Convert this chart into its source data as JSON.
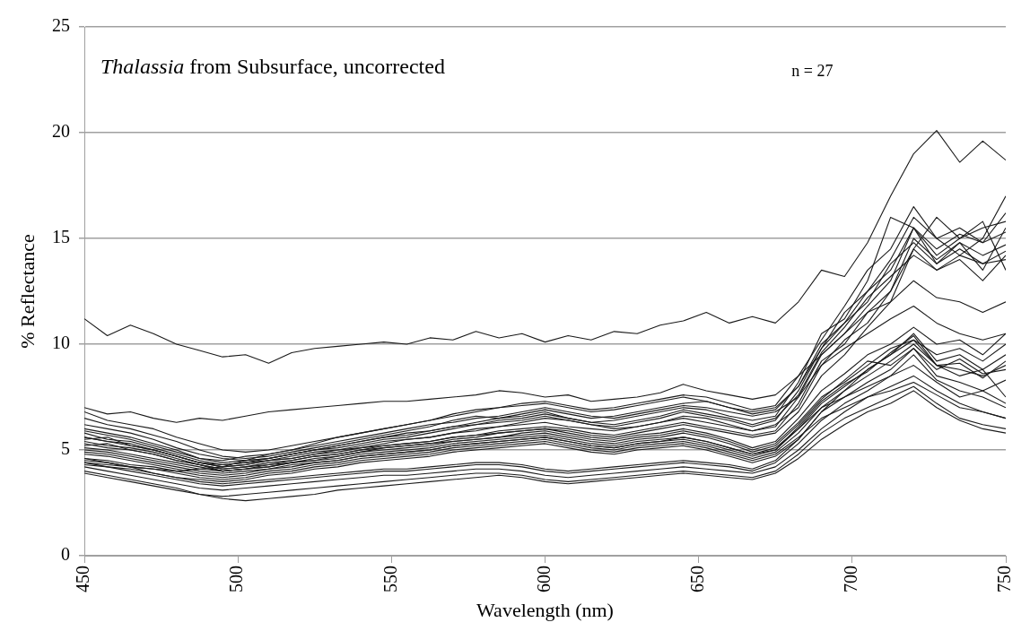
{
  "chart_data": {
    "type": "line",
    "title": "Thalassia from Subsurface, uncorrected",
    "xlabel": "Wavelength (nm)",
    "ylabel": "% Reflectance",
    "annotations": [
      "n = 27"
    ],
    "x": [
      450,
      457.5,
      465,
      472.5,
      480,
      487.5,
      495,
      502.5,
      510,
      517.5,
      525,
      532.5,
      540,
      547.5,
      555,
      562.5,
      570,
      577.5,
      585,
      592.5,
      600,
      607.5,
      615,
      622.5,
      630,
      637.5,
      645,
      652.5,
      660,
      667.5,
      675,
      682.5,
      690,
      697.5,
      705,
      712.5,
      720,
      727.5,
      735,
      742.5,
      750
    ],
    "xlim": [
      450,
      750
    ],
    "xticks": [
      450,
      500,
      550,
      600,
      650,
      700,
      750
    ],
    "ylim": [
      0,
      25
    ],
    "yticks": [
      0,
      5,
      10,
      15,
      20,
      25
    ],
    "grid": "y",
    "legend": false,
    "marker": "none",
    "line_style": "solid",
    "series": [
      {
        "color": "#1a1a1a",
        "values": [
          11.2,
          10.4,
          10.9,
          10.5,
          10.0,
          9.7,
          9.4,
          9.5,
          9.1,
          9.6,
          9.8,
          9.9,
          10.0,
          10.1,
          10.0,
          10.3,
          10.2,
          10.6,
          10.3,
          10.5,
          10.1,
          10.4,
          10.2,
          10.6,
          10.5,
          10.9,
          11.1,
          11.5,
          11.0,
          11.3,
          11.0,
          12.0,
          13.5,
          13.2,
          14.8,
          17.0,
          19.0,
          20.1,
          18.6,
          19.6,
          18.7
        ]
      },
      {
        "color": "#1a1a1a",
        "values": [
          7.0,
          6.7,
          6.8,
          6.5,
          6.3,
          6.5,
          6.4,
          6.6,
          6.8,
          6.9,
          7.0,
          7.1,
          7.2,
          7.3,
          7.3,
          7.4,
          7.5,
          7.6,
          7.8,
          7.7,
          7.5,
          7.6,
          7.3,
          7.4,
          7.5,
          7.7,
          8.1,
          7.8,
          7.6,
          7.4,
          7.6,
          8.5,
          9.5,
          10.5,
          11.5,
          12.5,
          14.5,
          16.0,
          15.0,
          15.5,
          15.8
        ]
      },
      {
        "color": "#1a1a1a",
        "values": [
          6.0,
          5.8,
          5.6,
          5.3,
          5.0,
          4.6,
          4.5,
          4.7,
          4.8,
          5.0,
          5.2,
          5.4,
          5.6,
          5.8,
          6.0,
          6.2,
          6.3,
          6.5,
          6.6,
          6.8,
          7.0,
          6.8,
          6.6,
          6.5,
          6.7,
          6.9,
          7.1,
          7.0,
          6.8,
          6.6,
          6.8,
          7.5,
          9.5,
          10.5,
          11.8,
          13.0,
          15.5,
          14.5,
          15.2,
          14.8,
          15.3
        ]
      },
      {
        "color": "#1a1a1a",
        "values": [
          5.5,
          5.6,
          5.2,
          5.0,
          4.7,
          4.4,
          4.2,
          4.3,
          4.5,
          4.6,
          4.8,
          5.0,
          5.1,
          5.3,
          5.5,
          5.6,
          5.8,
          6.0,
          6.1,
          6.3,
          6.5,
          6.4,
          6.2,
          6.0,
          6.1,
          6.3,
          6.6,
          6.5,
          6.2,
          5.9,
          6.2,
          7.0,
          9.0,
          10.2,
          11.0,
          12.5,
          15.0,
          14.0,
          14.8,
          14.2,
          14.7
        ]
      },
      {
        "color": "#1a1a1a",
        "values": [
          6.5,
          6.2,
          6.0,
          5.7,
          5.4,
          5.0,
          4.7,
          4.6,
          4.7,
          4.9,
          5.1,
          5.3,
          5.5,
          5.7,
          5.9,
          6.1,
          6.4,
          6.6,
          6.5,
          6.7,
          6.9,
          6.7,
          6.5,
          6.6,
          6.8,
          7.0,
          7.2,
          7.3,
          7.0,
          6.7,
          6.9,
          8.0,
          10.0,
          11.0,
          12.5,
          14.0,
          16.0,
          15.0,
          15.5,
          14.8,
          16.2
        ]
      },
      {
        "color": "#1a1a1a",
        "values": [
          5.2,
          5.3,
          5.0,
          4.8,
          4.5,
          4.3,
          4.0,
          4.1,
          4.2,
          4.4,
          4.5,
          4.7,
          4.9,
          5.1,
          5.2,
          5.3,
          5.5,
          5.6,
          5.8,
          5.9,
          6.0,
          5.9,
          5.7,
          5.6,
          5.8,
          6.0,
          6.2,
          6.0,
          5.8,
          5.6,
          5.8,
          6.8,
          8.5,
          9.5,
          10.8,
          12.0,
          14.5,
          13.5,
          14.2,
          13.8,
          14.4
        ]
      },
      {
        "color": "#1a1a1a",
        "values": [
          5.8,
          5.5,
          5.4,
          5.1,
          4.8,
          4.5,
          4.3,
          4.4,
          4.6,
          4.8,
          5.0,
          5.1,
          5.3,
          5.5,
          5.6,
          5.8,
          6.0,
          6.2,
          6.3,
          6.4,
          6.6,
          6.4,
          6.2,
          6.1,
          6.3,
          6.5,
          6.8,
          6.6,
          6.4,
          6.1,
          6.4,
          7.8,
          9.8,
          11.5,
          12.5,
          13.5,
          15.5,
          13.8,
          14.8,
          13.5,
          15.5
        ]
      },
      {
        "color": "#1a1a1a",
        "values": [
          6.2,
          6.0,
          5.8,
          5.5,
          5.1,
          4.8,
          4.6,
          4.5,
          4.6,
          4.8,
          5.0,
          5.2,
          5.4,
          5.6,
          5.8,
          5.9,
          6.1,
          6.3,
          6.5,
          6.6,
          6.8,
          6.5,
          6.3,
          6.4,
          6.6,
          6.8,
          7.0,
          6.9,
          6.6,
          6.4,
          6.6,
          8.2,
          10.5,
          11.2,
          13.0,
          16.0,
          15.5,
          14.2,
          15.0,
          15.8,
          13.5
        ]
      },
      {
        "color": "#1a1a1a",
        "values": [
          5.4,
          5.2,
          5.1,
          4.9,
          4.6,
          4.3,
          4.1,
          4.2,
          4.3,
          4.5,
          4.7,
          4.8,
          5.0,
          5.2,
          5.3,
          5.4,
          5.6,
          5.7,
          5.9,
          6.0,
          6.1,
          6.0,
          5.8,
          5.7,
          5.9,
          6.1,
          6.3,
          6.1,
          5.9,
          5.7,
          5.9,
          7.2,
          9.2,
          10.0,
          11.5,
          12.0,
          13.0,
          12.2,
          12.0,
          11.5,
          12.0
        ]
      },
      {
        "color": "#1a1a1a",
        "values": [
          5.6,
          5.4,
          5.3,
          5.0,
          4.7,
          4.4,
          4.3,
          4.4,
          4.5,
          4.7,
          4.9,
          5.0,
          5.2,
          5.4,
          5.5,
          5.6,
          5.8,
          5.9,
          6.1,
          6.2,
          6.3,
          6.1,
          6.0,
          5.9,
          6.1,
          6.3,
          6.5,
          6.3,
          6.1,
          5.9,
          6.1,
          7.5,
          9.0,
          9.8,
          10.5,
          11.2,
          11.8,
          11.0,
          10.5,
          10.2,
          10.5
        ]
      },
      {
        "color": "#1a1a1a",
        "values": [
          6.8,
          6.4,
          6.2,
          6.0,
          5.6,
          5.3,
          5.0,
          4.9,
          5.0,
          5.2,
          5.4,
          5.6,
          5.8,
          6.0,
          6.2,
          6.4,
          6.7,
          6.9,
          7.0,
          7.2,
          7.3,
          7.1,
          6.9,
          7.0,
          7.2,
          7.4,
          7.6,
          7.5,
          7.2,
          6.9,
          7.1,
          8.5,
          10.2,
          11.8,
          13.5,
          14.5,
          16.5,
          15.0,
          14.2,
          15.0,
          17.0
        ]
      },
      {
        "color": "#1a1a1a",
        "values": [
          5.9,
          5.7,
          5.5,
          5.2,
          4.9,
          4.6,
          4.4,
          4.5,
          4.6,
          4.8,
          5.0,
          5.2,
          5.4,
          5.6,
          5.7,
          5.9,
          6.1,
          6.2,
          6.4,
          6.5,
          6.7,
          6.5,
          6.3,
          6.2,
          6.4,
          6.6,
          6.9,
          6.7,
          6.5,
          6.2,
          6.5,
          7.6,
          9.6,
          10.8,
          12.2,
          13.2,
          14.2,
          13.5,
          14.0,
          13.0,
          14.2
        ]
      },
      {
        "color": "#1a1a1a",
        "values": [
          4.4,
          4.3,
          4.2,
          4.1,
          4.0,
          4.1,
          4.2,
          4.5,
          4.8,
          5.0,
          5.3,
          5.6,
          5.8,
          6.0,
          6.2,
          6.4,
          6.6,
          6.8,
          7.0,
          7.1,
          7.2,
          7.0,
          6.8,
          6.9,
          7.1,
          7.3,
          7.5,
          7.3,
          7.0,
          6.8,
          7.0,
          8.0,
          9.8,
          11.0,
          12.0,
          13.8,
          14.8,
          13.8,
          14.5,
          13.8,
          14.0
        ]
      },
      {
        "color": "#1a1a1a",
        "values": [
          4.6,
          4.5,
          4.3,
          4.2,
          4.0,
          3.8,
          3.7,
          3.8,
          4.0,
          4.1,
          4.3,
          4.4,
          4.6,
          4.7,
          4.8,
          4.9,
          5.1,
          5.2,
          5.3,
          5.4,
          5.5,
          5.3,
          5.1,
          5.0,
          5.2,
          5.3,
          5.4,
          5.2,
          4.9,
          4.6,
          4.9,
          5.8,
          7.0,
          7.8,
          8.5,
          9.2,
          10.0,
          9.0,
          8.8,
          8.5,
          9.0
        ]
      },
      {
        "color": "#1a1a1a",
        "values": [
          5.0,
          4.9,
          4.7,
          4.5,
          4.3,
          4.1,
          4.0,
          4.1,
          4.2,
          4.4,
          4.5,
          4.6,
          4.8,
          4.9,
          5.0,
          5.1,
          5.3,
          5.4,
          5.5,
          5.6,
          5.7,
          5.5,
          5.3,
          5.2,
          5.4,
          5.5,
          5.6,
          5.4,
          5.1,
          4.8,
          5.1,
          6.0,
          7.2,
          8.0,
          8.8,
          9.5,
          10.5,
          9.2,
          9.5,
          8.8,
          9.5
        ]
      },
      {
        "color": "#1a1a1a",
        "values": [
          4.3,
          4.2,
          4.1,
          3.9,
          3.7,
          3.6,
          3.5,
          3.6,
          3.8,
          3.9,
          4.1,
          4.2,
          4.4,
          4.5,
          4.6,
          4.7,
          4.9,
          5.0,
          5.1,
          5.2,
          5.3,
          5.1,
          4.9,
          4.8,
          5.0,
          5.1,
          5.2,
          5.0,
          4.7,
          4.4,
          4.7,
          5.5,
          6.8,
          7.5,
          8.2,
          8.8,
          9.8,
          8.5,
          8.2,
          7.8,
          8.3
        ]
      },
      {
        "color": "#1a1a1a",
        "values": [
          5.3,
          5.1,
          5.0,
          4.8,
          4.5,
          4.3,
          4.1,
          4.2,
          4.4,
          4.5,
          4.7,
          4.8,
          5.0,
          5.1,
          5.2,
          5.3,
          5.4,
          5.5,
          5.6,
          5.8,
          5.9,
          5.7,
          5.5,
          5.4,
          5.6,
          5.7,
          5.9,
          5.7,
          5.4,
          5.0,
          5.3,
          6.3,
          7.5,
          8.2,
          9.0,
          9.8,
          10.2,
          9.5,
          9.8,
          9.2,
          10.0
        ]
      },
      {
        "color": "#1a1a1a",
        "values": [
          4.8,
          4.7,
          4.5,
          4.3,
          4.1,
          3.9,
          3.8,
          3.9,
          4.1,
          4.2,
          4.4,
          4.5,
          4.7,
          4.8,
          4.9,
          5.0,
          5.2,
          5.3,
          5.4,
          5.5,
          5.6,
          5.4,
          5.2,
          5.1,
          5.3,
          5.4,
          5.5,
          5.3,
          5.0,
          4.7,
          5.0,
          6.0,
          7.0,
          7.5,
          8.0,
          8.5,
          9.0,
          8.2,
          7.5,
          7.8,
          7.2
        ]
      },
      {
        "color": "#1a1a1a",
        "values": [
          5.1,
          5.0,
          4.8,
          4.6,
          4.4,
          4.2,
          4.0,
          4.1,
          4.3,
          4.4,
          4.6,
          4.7,
          4.9,
          5.0,
          5.1,
          5.2,
          5.4,
          5.5,
          5.6,
          5.7,
          5.8,
          5.6,
          5.4,
          5.3,
          5.5,
          5.6,
          5.8,
          5.6,
          5.3,
          4.9,
          5.2,
          6.2,
          7.4,
          8.3,
          9.2,
          9.0,
          9.8,
          8.8,
          9.3,
          8.6,
          8.8
        ]
      },
      {
        "color": "#1a1a1a",
        "values": [
          4.5,
          4.4,
          4.2,
          4.1,
          3.9,
          3.7,
          3.6,
          3.7,
          3.9,
          4.0,
          4.2,
          4.3,
          4.5,
          4.6,
          4.7,
          4.8,
          5.0,
          5.1,
          5.2,
          5.3,
          5.4,
          5.2,
          5.0,
          4.9,
          5.1,
          5.2,
          5.3,
          5.1,
          4.8,
          4.5,
          4.8,
          5.6,
          6.5,
          7.0,
          7.5,
          7.8,
          8.2,
          7.6,
          7.0,
          6.8,
          6.5
        ]
      },
      {
        "color": "#1a1a1a",
        "values": [
          4.9,
          4.8,
          4.6,
          4.4,
          4.2,
          4.0,
          3.9,
          4.0,
          4.1,
          4.3,
          4.4,
          4.5,
          4.7,
          4.8,
          4.9,
          5.0,
          5.2,
          5.3,
          5.4,
          5.5,
          5.6,
          5.4,
          5.2,
          5.1,
          5.3,
          5.4,
          5.6,
          5.4,
          5.1,
          4.8,
          5.0,
          6.1,
          7.3,
          8.1,
          8.7,
          9.6,
          10.4,
          9.0,
          9.1,
          8.4,
          9.2
        ]
      },
      {
        "color": "#1a1a1a",
        "values": [
          5.6,
          5.4,
          5.2,
          5.0,
          4.7,
          4.4,
          4.2,
          4.3,
          4.5,
          4.6,
          4.8,
          4.9,
          5.1,
          5.2,
          5.3,
          5.4,
          5.6,
          5.7,
          5.8,
          5.9,
          6.0,
          5.8,
          5.6,
          5.5,
          5.7,
          5.8,
          6.0,
          5.8,
          5.5,
          5.1,
          5.4,
          6.5,
          7.8,
          8.6,
          9.5,
          10.0,
          10.8,
          10.0,
          10.2,
          9.5,
          10.5
        ]
      },
      {
        "color": "#1a1a1a",
        "values": [
          4.2,
          4.0,
          3.8,
          3.6,
          3.4,
          3.2,
          3.1,
          3.2,
          3.3,
          3.4,
          3.5,
          3.6,
          3.7,
          3.8,
          3.8,
          3.9,
          4.0,
          4.1,
          4.1,
          4.0,
          3.8,
          3.7,
          3.8,
          3.9,
          4.0,
          4.1,
          4.2,
          4.1,
          4.0,
          3.9,
          4.2,
          5.0,
          6.0,
          6.8,
          7.5,
          8.0,
          8.5,
          7.8,
          7.2,
          6.8,
          6.5
        ]
      },
      {
        "color": "#1a1a1a",
        "values": [
          4.4,
          4.2,
          4.0,
          3.8,
          3.6,
          3.4,
          3.3,
          3.4,
          3.5,
          3.6,
          3.7,
          3.8,
          3.9,
          4.0,
          4.0,
          4.1,
          4.2,
          4.3,
          4.3,
          4.2,
          4.0,
          3.9,
          4.0,
          4.1,
          4.2,
          4.3,
          4.4,
          4.3,
          4.2,
          4.0,
          4.4,
          5.3,
          6.4,
          7.2,
          7.8,
          8.5,
          9.5,
          8.3,
          7.8,
          7.5,
          7.0
        ]
      },
      {
        "color": "#1a1a1a",
        "values": [
          3.9,
          3.7,
          3.5,
          3.3,
          3.1,
          2.9,
          2.8,
          2.9,
          3.0,
          3.1,
          3.2,
          3.3,
          3.4,
          3.5,
          3.6,
          3.7,
          3.8,
          3.9,
          3.9,
          3.8,
          3.6,
          3.5,
          3.6,
          3.7,
          3.8,
          3.9,
          4.0,
          3.9,
          3.8,
          3.7,
          4.0,
          4.8,
          5.8,
          6.5,
          7.0,
          7.5,
          8.0,
          7.2,
          6.5,
          6.2,
          6.0
        ]
      },
      {
        "color": "#1a1a1a",
        "values": [
          4.0,
          3.8,
          3.6,
          3.4,
          3.2,
          2.9,
          2.7,
          2.6,
          2.7,
          2.8,
          2.9,
          3.1,
          3.2,
          3.3,
          3.4,
          3.5,
          3.6,
          3.7,
          3.8,
          3.7,
          3.5,
          3.4,
          3.5,
          3.6,
          3.7,
          3.8,
          3.9,
          3.8,
          3.7,
          3.6,
          3.9,
          4.6,
          5.5,
          6.2,
          6.8,
          7.2,
          7.8,
          7.0,
          6.4,
          6.0,
          5.8
        ]
      },
      {
        "color": "#1a1a1a",
        "values": [
          4.6,
          4.4,
          4.2,
          3.9,
          3.7,
          3.5,
          3.4,
          3.5,
          3.6,
          3.7,
          3.8,
          3.9,
          4.0,
          4.1,
          4.1,
          4.2,
          4.3,
          4.4,
          4.4,
          4.3,
          4.1,
          4.0,
          4.1,
          4.2,
          4.3,
          4.4,
          4.5,
          4.4,
          4.3,
          4.1,
          4.5,
          5.5,
          6.8,
          7.8,
          8.8,
          9.5,
          10.2,
          9.0,
          8.5,
          8.8,
          7.5
        ]
      }
    ]
  }
}
